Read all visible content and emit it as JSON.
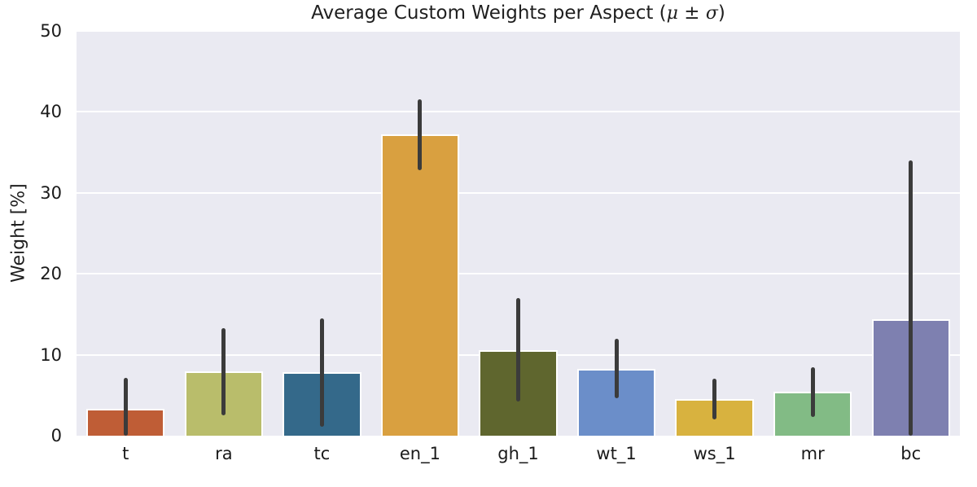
{
  "chart_data": {
    "type": "bar",
    "title": "Average Custom Weights per Aspect (μ ± σ)",
    "title_parts": {
      "prefix": "Average Custom Weights per Aspect (",
      "mu": "μ",
      "pm": " ± ",
      "sigma": "σ",
      "suffix": ")"
    },
    "xlabel": "",
    "ylabel": "Weight [%]",
    "ylim": [
      0,
      50
    ],
    "yticks": [
      0,
      10,
      20,
      30,
      40,
      50
    ],
    "grid": true,
    "legend": "none",
    "categories": [
      "t",
      "ra",
      "tc",
      "en_1",
      "gh_1",
      "wt_1",
      "ws_1",
      "mr",
      "bc"
    ],
    "series": [
      {
        "name": "mean_weight_pct",
        "values": [
          3.3,
          7.9,
          7.8,
          37.2,
          10.6,
          8.3,
          4.5,
          5.4,
          14.4
        ],
        "errors": [
          3.8,
          5.4,
          6.7,
          4.4,
          6.4,
          3.7,
          2.5,
          3.1,
          19.6
        ]
      }
    ],
    "bar_colors": [
      "#bf5d36",
      "#b9bd6b",
      "#34698a",
      "#d9a040",
      "#5f662e",
      "#6b8ec9",
      "#d8b23f",
      "#82bb85",
      "#7e80b0"
    ],
    "error_color": "#3b3b3b",
    "plot_bg": "#eaeaf2",
    "grid_color": "#ffffff",
    "figure_bg": "#ffffff",
    "bar_width_fraction": 0.8
  }
}
